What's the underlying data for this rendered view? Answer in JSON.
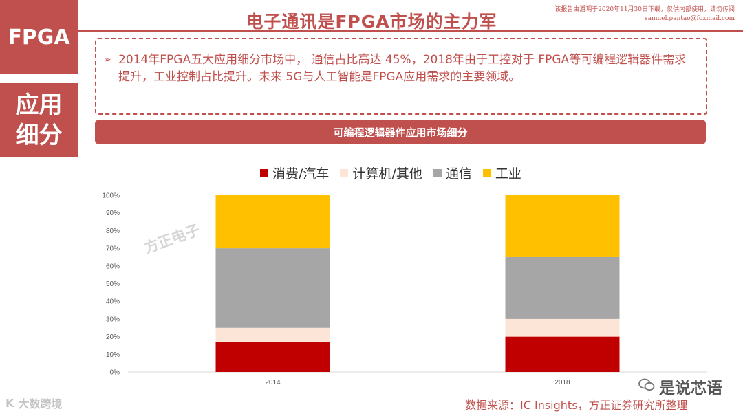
{
  "header": {
    "title": "电子通讯是FPGA市场的主力军",
    "notice_line1": "该报告由潘玥于2020年11月30日下载，仅供内部使用，请勿传阅",
    "notice_line2": "samuel.pantao@foxmail.com"
  },
  "left_tabs": {
    "tab1": "FPGA",
    "tab2_line1": "应用",
    "tab2_line2": "细分"
  },
  "summary": {
    "bullet": "➢",
    "text": "2014年FPGA五大应用细分市场中，  通信占比高达 45%，2018年由于工控对于 FPGA等可编程逻辑器件需求提升，工业控制占比提升。未来  5G与人工智能是FPGA应用需求的主要领域。"
  },
  "chart_banner": "可编程逻辑器件应用市场细分",
  "chart_data": {
    "type": "bar",
    "stacked": true,
    "categories": [
      "2014",
      "2018"
    ],
    "series": [
      {
        "name": "消费/汽车",
        "values": [
          17,
          20
        ],
        "color": "#c00000"
      },
      {
        "name": "计算机/其他",
        "values": [
          8,
          10
        ],
        "color": "#fce4d6"
      },
      {
        "name": "通信",
        "values": [
          45,
          35
        ],
        "color": "#a6a6a6"
      },
      {
        "name": "工业",
        "values": [
          30,
          35
        ],
        "color": "#ffc000"
      }
    ],
    "ylim": [
      0,
      100
    ],
    "yticks": [
      "0%",
      "10%",
      "20%",
      "30%",
      "40%",
      "50%",
      "60%",
      "70%",
      "80%",
      "90%",
      "100%"
    ],
    "legend_position": "top",
    "grid": false
  },
  "watermarks": {
    "center": "方正电子",
    "bottom_left": "大数跨境",
    "bottom_left_icon": "K",
    "bottom_right": "是说芯语",
    "bottom_right_icon": "wechat-icon"
  },
  "source": "数据来源：IC Insights，方正证券研究所整理",
  "colors": {
    "accent": "#c0504d"
  }
}
